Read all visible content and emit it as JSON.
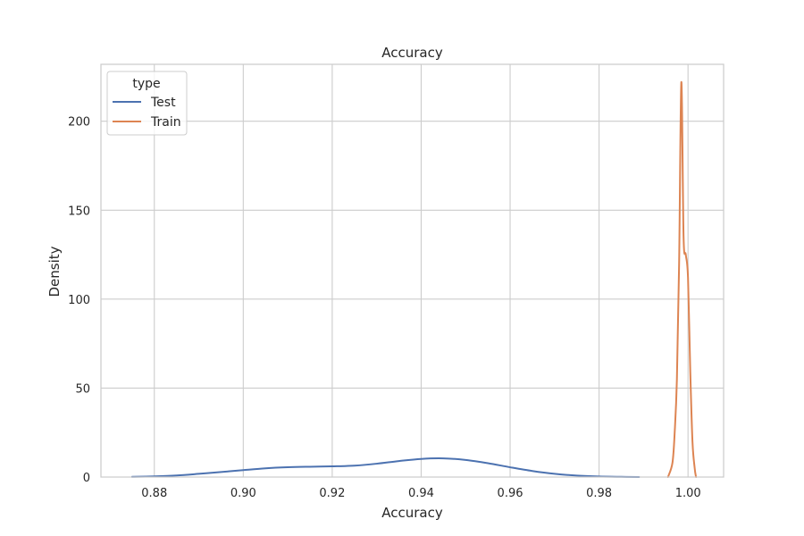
{
  "chart_data": {
    "type": "line",
    "title": "Accuracy",
    "xlabel": "Accuracy",
    "ylabel": "Density",
    "xlim": [
      0.868,
      1.008
    ],
    "ylim": [
      0,
      232
    ],
    "xticks": [
      0.88,
      0.9,
      0.92,
      0.94,
      0.96,
      0.98,
      1.0
    ],
    "xtick_labels": [
      "0.88",
      "0.90",
      "0.92",
      "0.94",
      "0.96",
      "0.98",
      "1.00"
    ],
    "yticks": [
      0,
      50,
      100,
      150,
      200
    ],
    "ytick_labels": [
      "0",
      "50",
      "100",
      "150",
      "200"
    ],
    "grid": true,
    "legend": {
      "title": "type",
      "placement": "upper-left",
      "entries": [
        {
          "label": "Test",
          "color": "#4c72b0"
        },
        {
          "label": "Train",
          "color": "#dd8452"
        }
      ]
    },
    "series": [
      {
        "name": "Test",
        "color": "#4c72b0",
        "x": [
          0.875,
          0.88,
          0.885,
          0.89,
          0.895,
          0.9,
          0.905,
          0.91,
          0.915,
          0.92,
          0.925,
          0.93,
          0.935,
          0.94,
          0.945,
          0.95,
          0.955,
          0.96,
          0.965,
          0.97,
          0.975,
          0.98,
          0.985,
          0.989
        ],
        "y": [
          0.1,
          0.4,
          0.9,
          1.8,
          2.8,
          3.9,
          4.9,
          5.5,
          5.8,
          6.0,
          6.4,
          7.5,
          9.0,
          10.2,
          10.5,
          9.6,
          7.8,
          5.5,
          3.4,
          1.8,
          0.8,
          0.3,
          0.1,
          0.0
        ]
      },
      {
        "name": "Train",
        "color": "#dd8452",
        "x": [
          0.9955,
          0.9965,
          0.997,
          0.9975,
          0.998,
          0.9985,
          0.999,
          0.9995,
          1.0,
          1.0005,
          1.001,
          1.0015,
          1.0018
        ],
        "y": [
          0,
          8,
          25,
          55,
          120,
          222,
          135,
          125,
          112,
          60,
          20,
          5,
          0
        ]
      }
    ]
  }
}
